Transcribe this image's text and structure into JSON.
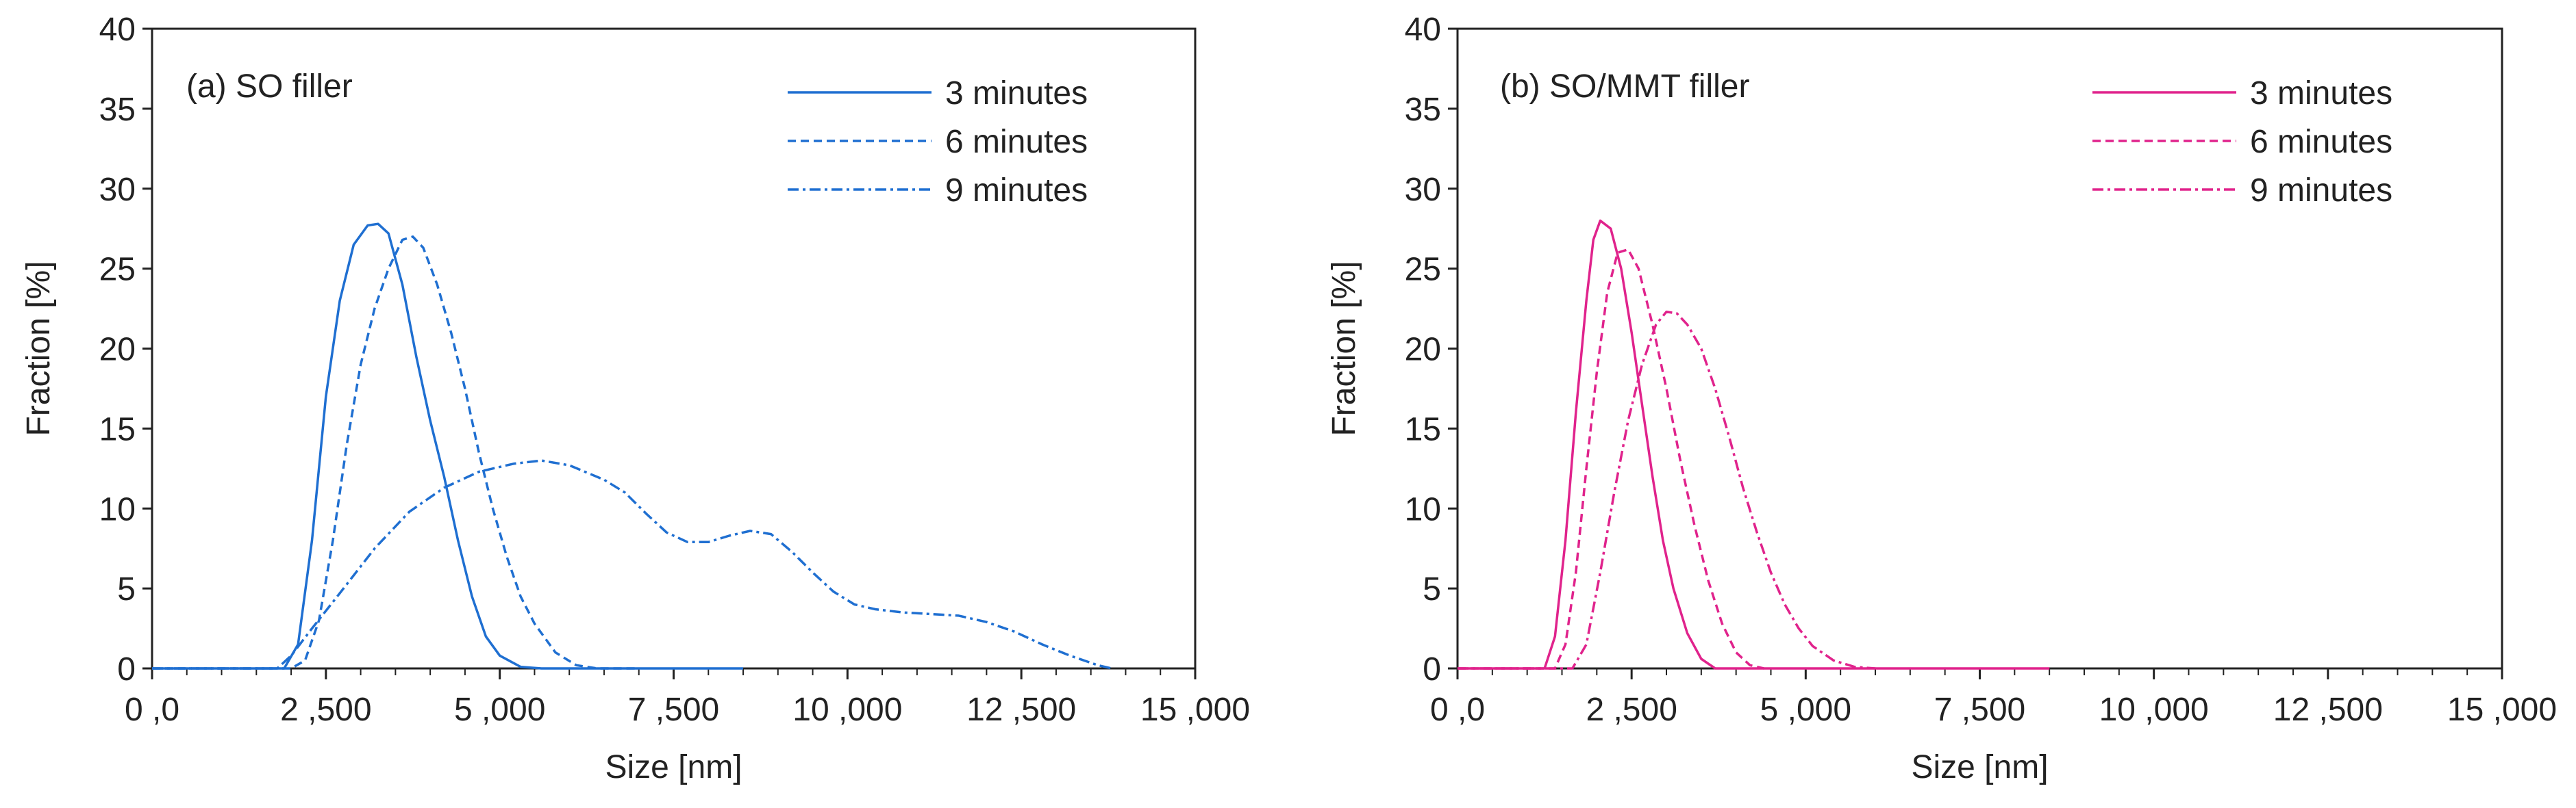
{
  "chart_data": [
    {
      "type": "line",
      "panel_label": "(a) SO filler",
      "xlabel": "Size [nm]",
      "ylabel": "Fraction [%]",
      "xlim": [
        0,
        15000
      ],
      "ylim": [
        0,
        40
      ],
      "x_ticks": [
        0,
        2500,
        5000,
        7500,
        10000,
        12500,
        15000
      ],
      "x_tick_labels": [
        "0 ,0",
        "2 ,500",
        "5 ,000",
        "7 ,500",
        "10 ,000",
        "12 ,500",
        "15 ,000"
      ],
      "y_ticks": [
        0,
        5,
        10,
        15,
        20,
        25,
        30,
        35,
        40
      ],
      "y_tick_labels": [
        "0",
        "5",
        "10",
        "15",
        "20",
        "25",
        "30",
        "35",
        "40"
      ],
      "grid": false,
      "legend_position": "top-right",
      "series": [
        {
          "name": "3 minutes",
          "dash": "solid",
          "color": "#1f6fd1",
          "points": [
            [
              0,
              0
            ],
            [
              1900,
              0
            ],
            [
              2100,
              1.5
            ],
            [
              2300,
              8
            ],
            [
              2500,
              17
            ],
            [
              2700,
              23
            ],
            [
              2900,
              26.5
            ],
            [
              3100,
              27.7
            ],
            [
              3250,
              27.8
            ],
            [
              3400,
              27.2
            ],
            [
              3600,
              24
            ],
            [
              3800,
              19.5
            ],
            [
              4000,
              15.5
            ],
            [
              4200,
              12
            ],
            [
              4400,
              8
            ],
            [
              4600,
              4.5
            ],
            [
              4800,
              2
            ],
            [
              5000,
              0.8
            ],
            [
              5300,
              0.1
            ],
            [
              5600,
              0
            ],
            [
              6000,
              0
            ],
            [
              7000,
              0
            ],
            [
              8500,
              0
            ]
          ]
        },
        {
          "name": "6 minutes",
          "dash": "dashed",
          "color": "#1f6fd1",
          "points": [
            [
              0,
              0
            ],
            [
              2000,
              0
            ],
            [
              2200,
              0.5
            ],
            [
              2400,
              3
            ],
            [
              2600,
              8
            ],
            [
              2800,
              14
            ],
            [
              3000,
              19
            ],
            [
              3200,
              22.5
            ],
            [
              3400,
              25
            ],
            [
              3600,
              26.8
            ],
            [
              3750,
              27
            ],
            [
              3900,
              26.3
            ],
            [
              4100,
              24
            ],
            [
              4300,
              21
            ],
            [
              4500,
              17.5
            ],
            [
              4700,
              13.5
            ],
            [
              4900,
              10
            ],
            [
              5100,
              7
            ],
            [
              5300,
              4.5
            ],
            [
              5500,
              2.8
            ],
            [
              5800,
              1
            ],
            [
              6100,
              0.2
            ],
            [
              6400,
              0
            ],
            [
              7000,
              0
            ]
          ]
        },
        {
          "name": "9 minutes",
          "dash": "dashdot",
          "color": "#1f6fd1",
          "points": [
            [
              0,
              0
            ],
            [
              1800,
              0
            ],
            [
              2000,
              0.8
            ],
            [
              2300,
              2.5
            ],
            [
              2700,
              4.7
            ],
            [
              3200,
              7.5
            ],
            [
              3700,
              9.8
            ],
            [
              4200,
              11.3
            ],
            [
              4700,
              12.3
            ],
            [
              5200,
              12.8
            ],
            [
              5600,
              13
            ],
            [
              6000,
              12.7
            ],
            [
              6500,
              11.8
            ],
            [
              6800,
              11
            ],
            [
              7100,
              9.7
            ],
            [
              7400,
              8.5
            ],
            [
              7700,
              7.9
            ],
            [
              8000,
              7.9
            ],
            [
              8300,
              8.3
            ],
            [
              8600,
              8.6
            ],
            [
              8900,
              8.4
            ],
            [
              9200,
              7.3
            ],
            [
              9500,
              6
            ],
            [
              9800,
              4.8
            ],
            [
              10100,
              4
            ],
            [
              10400,
              3.7
            ],
            [
              10800,
              3.5
            ],
            [
              11200,
              3.4
            ],
            [
              11600,
              3.3
            ],
            [
              12000,
              2.9
            ],
            [
              12400,
              2.3
            ],
            [
              12800,
              1.5
            ],
            [
              13200,
              0.8
            ],
            [
              13600,
              0.2
            ],
            [
              13800,
              0
            ]
          ]
        }
      ]
    },
    {
      "type": "line",
      "panel_label": "(b) SO/MMT filler",
      "xlabel": "Size [nm]",
      "ylabel": "Fraction [%]",
      "xlim": [
        0,
        15000
      ],
      "ylim": [
        0,
        40
      ],
      "x_ticks": [
        0,
        2500,
        5000,
        7500,
        10000,
        12500,
        15000
      ],
      "x_tick_labels": [
        "0 ,0",
        "2 ,500",
        "5 ,000",
        "7 ,500",
        "10 ,000",
        "12 ,500",
        "15 ,000"
      ],
      "y_ticks": [
        0,
        5,
        10,
        15,
        20,
        25,
        30,
        35,
        40
      ],
      "y_tick_labels": [
        "0",
        "5",
        "10",
        "15",
        "20",
        "25",
        "30",
        "35",
        "40"
      ],
      "grid": false,
      "legend_position": "top-right",
      "series": [
        {
          "name": "3 minutes",
          "dash": "solid",
          "color": "#e0238c",
          "points": [
            [
              0,
              0
            ],
            [
              1250,
              0
            ],
            [
              1400,
              2
            ],
            [
              1550,
              8
            ],
            [
              1700,
              16
            ],
            [
              1850,
              23
            ],
            [
              1950,
              26.8
            ],
            [
              2050,
              28
            ],
            [
              2200,
              27.5
            ],
            [
              2350,
              25
            ],
            [
              2500,
              21
            ],
            [
              2650,
              16.5
            ],
            [
              2800,
              12
            ],
            [
              2950,
              8
            ],
            [
              3100,
              5
            ],
            [
              3300,
              2.2
            ],
            [
              3500,
              0.6
            ],
            [
              3700,
              0
            ],
            [
              4000,
              0
            ],
            [
              6000,
              0
            ],
            [
              8500,
              0
            ]
          ]
        },
        {
          "name": "6 minutes",
          "dash": "dashed",
          "color": "#e0238c",
          "points": [
            [
              0,
              0
            ],
            [
              1400,
              0
            ],
            [
              1550,
              1.5
            ],
            [
              1700,
              6
            ],
            [
              1850,
              12.5
            ],
            [
              2000,
              18.5
            ],
            [
              2150,
              23.5
            ],
            [
              2300,
              26
            ],
            [
              2450,
              26.2
            ],
            [
              2600,
              25
            ],
            [
              2800,
              21.5
            ],
            [
              3000,
              17.5
            ],
            [
              3200,
              13
            ],
            [
              3400,
              9
            ],
            [
              3600,
              5.5
            ],
            [
              3800,
              2.8
            ],
            [
              4000,
              1
            ],
            [
              4200,
              0.2
            ],
            [
              4400,
              0
            ]
          ]
        },
        {
          "name": "9 minutes",
          "dash": "dashdot",
          "color": "#e0238c",
          "points": [
            [
              0,
              0
            ],
            [
              1650,
              0
            ],
            [
              1850,
              1.5
            ],
            [
              2050,
              6
            ],
            [
              2250,
              11
            ],
            [
              2450,
              15.5
            ],
            [
              2650,
              19
            ],
            [
              2850,
              21.5
            ],
            [
              3000,
              22.3
            ],
            [
              3150,
              22.2
            ],
            [
              3300,
              21.5
            ],
            [
              3500,
              20
            ],
            [
              3700,
              17.5
            ],
            [
              3900,
              14.5
            ],
            [
              4100,
              11.3
            ],
            [
              4300,
              8.5
            ],
            [
              4500,
              6
            ],
            [
              4700,
              4
            ],
            [
              4900,
              2.5
            ],
            [
              5100,
              1.4
            ],
            [
              5400,
              0.5
            ],
            [
              5700,
              0.1
            ],
            [
              6000,
              0
            ]
          ]
        }
      ]
    }
  ]
}
